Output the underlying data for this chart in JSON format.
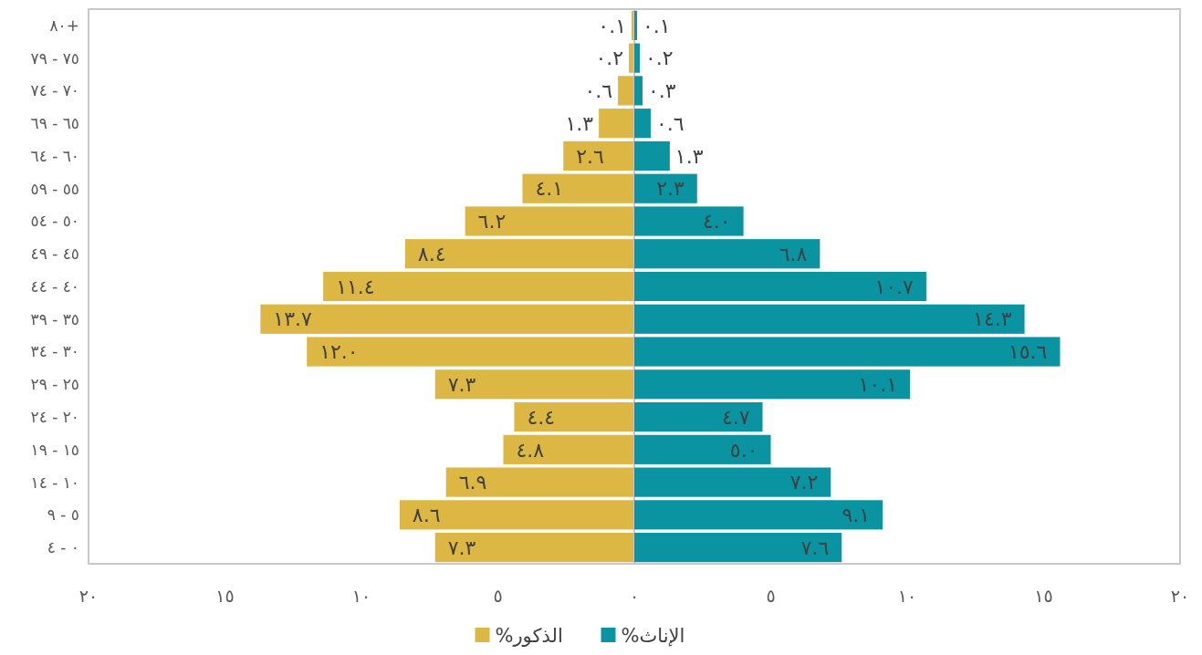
{
  "chart_data": [
    {
      "type": "bar",
      "orientation": "horizontal",
      "categories": [
        "٨٠+",
        "٧٥ - ٧٩",
        "٧٠ - ٧٤",
        "٦٥ - ٦٩",
        "٦٠ - ٦٤",
        "٥٥ - ٥٩",
        "٥٠ - ٥٤",
        "٤٥ - ٤٩",
        "٤٠ - ٤٤",
        "٣٥ - ٣٩",
        "٣٠ - ٣٤",
        "٢٥ - ٢٩",
        "٢٠ - ٢٤",
        "١٥ - ١٩",
        "١٠ - ١٤",
        "٥ - ٩",
        "٠ - ٤"
      ],
      "series": [
        {
          "name": "%الذكور",
          "color": "#ddb744",
          "values": [
            0.1,
            0.2,
            0.6,
            1.3,
            2.6,
            4.1,
            6.2,
            8.4,
            11.4,
            13.7,
            12.0,
            7.3,
            4.4,
            4.8,
            6.9,
            8.6,
            7.3
          ],
          "value_labels": [
            "٠.١",
            "٠.٢",
            "٠.٦",
            "١.٣",
            "٢.٦",
            "٤.١",
            "٦.٢",
            "٨.٤",
            "١١.٤",
            "١٣.٧",
            "١٢.٠",
            "٧.٣",
            "٤.٤",
            "٤.٨",
            "٦.٩",
            "٨.٦",
            "٧.٣"
          ]
        }
      ],
      "xlim": [
        20,
        0
      ],
      "xticks": [
        {
          "value": 20,
          "label": "٢٠"
        },
        {
          "value": 15,
          "label": "١٥"
        },
        {
          "value": 10,
          "label": "١٠"
        },
        {
          "value": 5,
          "label": "٥"
        },
        {
          "value": 0,
          "label": "٠"
        }
      ],
      "legend": "bottom"
    },
    {
      "type": "bar",
      "orientation": "horizontal",
      "categories": [
        "٨٠+",
        "٧٥ - ٧٩",
        "٧٠ - ٧٤",
        "٦٥ - ٦٩",
        "٦٠ - ٦٤",
        "٥٥ - ٥٩",
        "٥٠ - ٥٤",
        "٤٥ - ٤٩",
        "٤٠ - ٤٤",
        "٣٥ - ٣٩",
        "٣٠ - ٣٤",
        "٢٥ - ٢٩",
        "٢٠ - ٢٤",
        "١٥ - ١٩",
        "١٠ - ١٤",
        "٥ - ٩",
        "٠ - ٤"
      ],
      "series": [
        {
          "name": "%الإناث",
          "color": "#0a94a2",
          "values": [
            0.1,
            0.2,
            0.3,
            0.6,
            1.3,
            2.3,
            4.0,
            6.8,
            10.7,
            14.3,
            15.6,
            10.1,
            4.7,
            5.0,
            7.2,
            9.1,
            7.6
          ],
          "value_labels": [
            "٠.١",
            "٠.٢",
            "٠.٣",
            "٠.٦",
            "١.٣",
            "٢.٣",
            "٤.٠",
            "٦.٨",
            "١٠.٧",
            "١٤.٣",
            "١٥.٦",
            "١٠.١",
            "٤.٧",
            "٥.٠",
            "٧.٢",
            "٩.١",
            "٧.٦"
          ]
        }
      ],
      "xlim": [
        0,
        20
      ],
      "xticks": [
        {
          "value": 5,
          "label": "٥"
        },
        {
          "value": 10,
          "label": "١٠"
        },
        {
          "value": 15,
          "label": "١٥"
        },
        {
          "value": 20,
          "label": "٢٠"
        }
      ],
      "tick_labels": "x",
      "legend": "bottom"
    }
  ]
}
